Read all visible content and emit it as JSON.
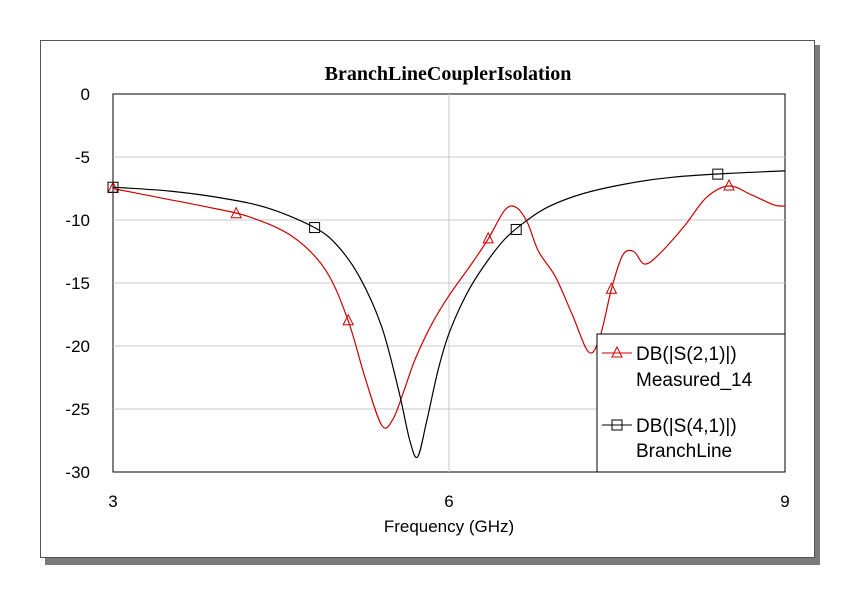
{
  "chart_data": {
    "type": "line",
    "title": "BranchLineCouplerIsolation",
    "xlabel": "Frequency (GHz)",
    "ylabel": "",
    "xlim": [
      3,
      9
    ],
    "ylim": [
      -30,
      0
    ],
    "xticks": [
      3,
      6,
      9
    ],
    "yticks": [
      0,
      -5,
      -10,
      -15,
      -20,
      -25,
      -30
    ],
    "grid": true,
    "legend_position": "bottom-right",
    "series": [
      {
        "name": "DB(|S(2,1)|)",
        "name2": "Measured_14",
        "color": "#cc0000",
        "marker": "triangle",
        "x": [
          3.0,
          3.4,
          3.8,
          4.2,
          4.6,
          4.9,
          5.1,
          5.25,
          5.4,
          5.5,
          5.6,
          5.7,
          5.85,
          6.0,
          6.2,
          6.35,
          6.5,
          6.6,
          6.7,
          6.8,
          6.95,
          7.1,
          7.25,
          7.35,
          7.45,
          7.55,
          7.65,
          7.75,
          7.9,
          8.1,
          8.3,
          8.5,
          8.7,
          8.9,
          9.0
        ],
        "y": [
          -7.5,
          -8.2,
          -8.9,
          -9.7,
          -11.3,
          -14.0,
          -18.0,
          -22.5,
          -26.3,
          -25.8,
          -23.5,
          -21.0,
          -18.2,
          -16.0,
          -13.5,
          -11.5,
          -9.2,
          -9.0,
          -10.2,
          -12.5,
          -14.5,
          -17.5,
          -20.5,
          -19.2,
          -15.5,
          -12.8,
          -12.5,
          -13.5,
          -12.5,
          -10.5,
          -8.2,
          -7.3,
          -8.0,
          -8.8,
          -8.9
        ],
        "marker_x": [
          3.0,
          4.1,
          5.1,
          6.35,
          7.45,
          8.5
        ]
      },
      {
        "name": "DB(|S(4,1)|)",
        "name2": "BranchLine",
        "color": "#000000",
        "marker": "square",
        "x": [
          3.0,
          3.5,
          4.0,
          4.4,
          4.8,
          5.0,
          5.2,
          5.4,
          5.55,
          5.65,
          5.72,
          5.8,
          5.9,
          6.0,
          6.15,
          6.3,
          6.5,
          6.7,
          6.9,
          7.2,
          7.6,
          8.0,
          8.5,
          9.0
        ],
        "y": [
          -7.4,
          -7.7,
          -8.3,
          -9.1,
          -10.6,
          -12.0,
          -14.5,
          -18.5,
          -23.5,
          -27.5,
          -28.8,
          -26.0,
          -22.0,
          -19.0,
          -16.0,
          -13.8,
          -11.5,
          -10.0,
          -8.9,
          -7.9,
          -7.1,
          -6.6,
          -6.3,
          -6.1
        ],
        "marker_x": [
          3.0,
          4.8,
          6.6,
          8.4
        ]
      }
    ]
  }
}
